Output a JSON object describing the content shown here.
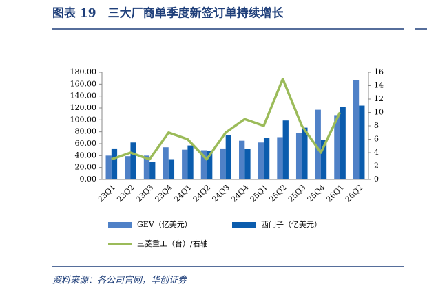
{
  "chart_data": {
    "type": "bar-line",
    "title": "图表 19　三大厂商单季度新签订单持续增长",
    "source": "资料来源：各公司官网，华创证券",
    "categories": [
      "23Q1",
      "23Q2",
      "23Q3",
      "23Q4",
      "24Q1",
      "24Q2",
      "24Q3",
      "24Q4",
      "25Q1",
      "25Q2",
      "25Q3",
      "25Q4",
      "26Q1",
      "26Q2"
    ],
    "series": [
      {
        "name": "GEV（亿美元）",
        "color": "#4f81c7",
        "type": "bar",
        "values": [
          40,
          39,
          40,
          54,
          50,
          49,
          52,
          65,
          62,
          71,
          78,
          117,
          108,
          167
        ]
      },
      {
        "name": "西门子（亿美元）",
        "color": "#0b5cad",
        "type": "bar",
        "values": [
          52,
          62,
          30,
          34,
          57,
          48,
          74,
          51,
          70,
          99,
          87,
          66,
          122,
          124
        ]
      },
      {
        "name": "三菱重工（台）/右轴",
        "color": "#9bbb59",
        "type": "line",
        "axis": "y2",
        "values": [
          3,
          4,
          3,
          7,
          6,
          3,
          7,
          9,
          8,
          15,
          8,
          4,
          10,
          null
        ]
      }
    ],
    "ylim": [
      0,
      180
    ],
    "yticks": [
      {
        "value": 0,
        "label": "0.00"
      },
      {
        "value": 20,
        "label": "20.00"
      },
      {
        "value": 40,
        "label": "40.00"
      },
      {
        "value": 60,
        "label": "60.00"
      },
      {
        "value": 80,
        "label": "80.00"
      },
      {
        "value": 100,
        "label": "100.00"
      },
      {
        "value": 120,
        "label": "120.00"
      },
      {
        "value": 140,
        "label": "140.00"
      },
      {
        "value": 160,
        "label": "160.00"
      },
      {
        "value": 180,
        "label": "180.00"
      }
    ],
    "y2lim": [
      0,
      16
    ],
    "y2ticks": [
      0,
      2,
      4,
      6,
      8,
      10,
      12,
      14,
      16
    ]
  }
}
